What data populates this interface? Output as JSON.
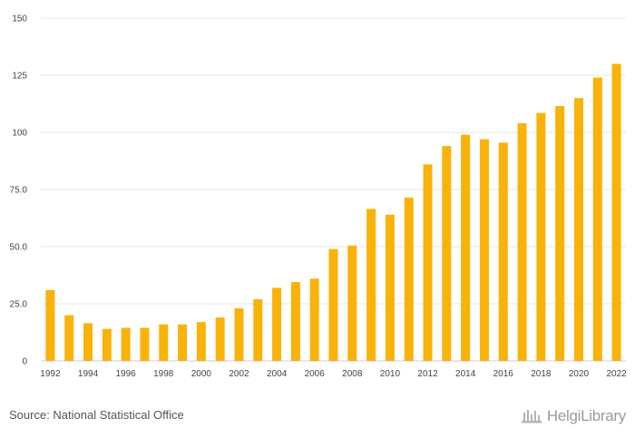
{
  "chart_data": {
    "type": "bar",
    "categories": [
      "1992",
      "1993",
      "1994",
      "1995",
      "1996",
      "1997",
      "1998",
      "1999",
      "2000",
      "2001",
      "2002",
      "2003",
      "2004",
      "2005",
      "2006",
      "2007",
      "2008",
      "2009",
      "2010",
      "2011",
      "2012",
      "2013",
      "2014",
      "2015",
      "2016",
      "2017",
      "2018",
      "2019",
      "2020",
      "2021",
      "2022"
    ],
    "x_tick_labels": [
      "1992",
      "1994",
      "1996",
      "1998",
      "2000",
      "2002",
      "2004",
      "2006",
      "2008",
      "2010",
      "2012",
      "2014",
      "2016",
      "2018",
      "2020",
      "2022"
    ],
    "values": [
      31,
      20,
      16.5,
      14,
      14.5,
      14.5,
      16,
      16,
      17,
      19,
      23,
      27,
      32,
      34.5,
      36,
      49,
      50.5,
      66.5,
      64,
      71.5,
      86,
      94,
      99,
      97,
      95.5,
      104,
      108.5,
      111.5,
      115,
      124,
      130
    ],
    "ylim": [
      0,
      150
    ],
    "y_ticks": [
      0,
      25,
      50,
      75,
      100,
      125,
      150
    ],
    "y_tick_labels": [
      "0",
      "25.0",
      "50.0",
      "75.0",
      "100",
      "125",
      "150"
    ],
    "bar_color": "#F9B208",
    "grid": true,
    "title": "",
    "xlabel": "",
    "ylabel": ""
  },
  "footer": {
    "source": "Source: National Statistical Office",
    "brand": "HelgiLibrary"
  }
}
